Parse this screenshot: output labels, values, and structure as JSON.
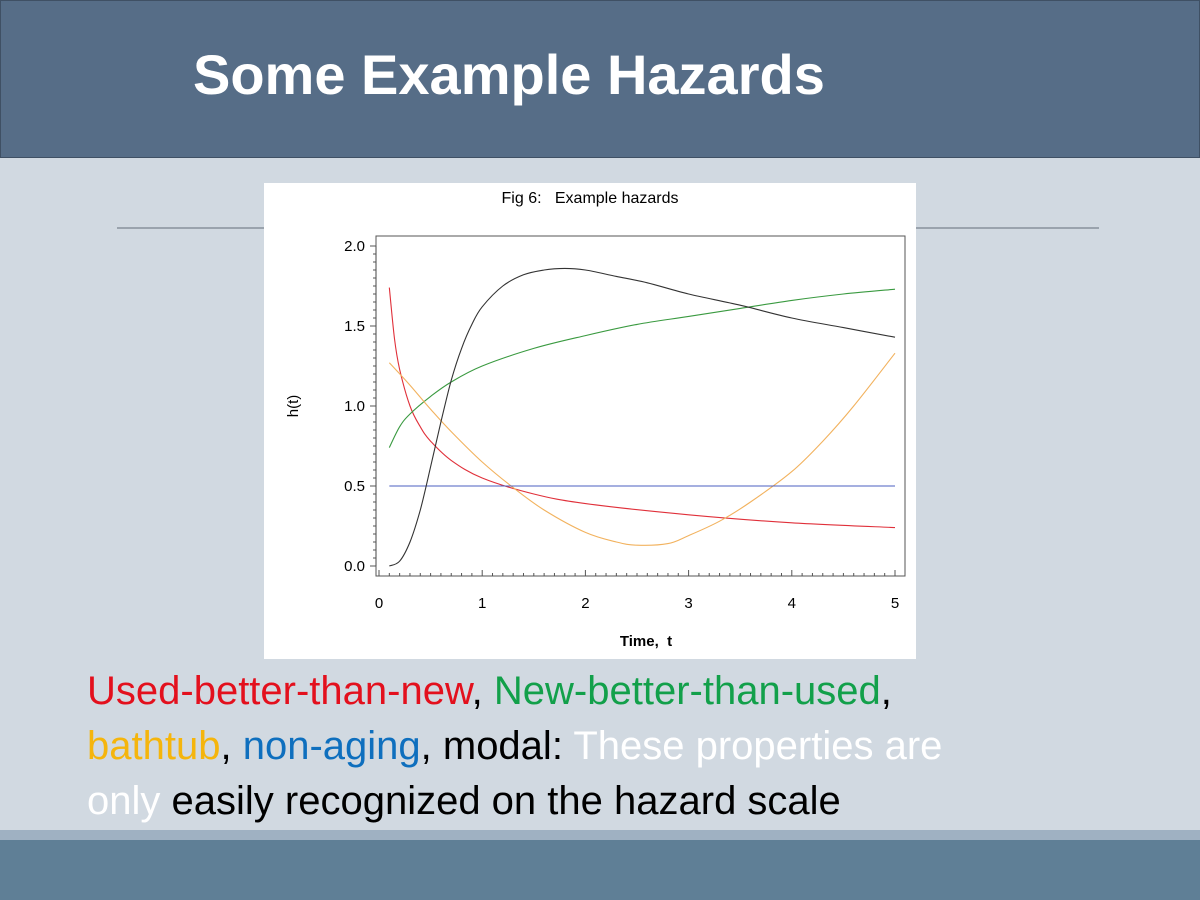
{
  "slide": {
    "title": "Some Example Hazards"
  },
  "caption": {
    "parts": [
      {
        "text": "Used-better-than-new",
        "color": "#e3101d"
      },
      {
        "text": ", ",
        "color": "#000000"
      },
      {
        "text": "New-better-than-used",
        "color": "#12a04a"
      },
      {
        "text": ",",
        "color": "#000000"
      },
      {
        "text": "bathtub",
        "color": "#f5b50c"
      },
      {
        "text": ", ",
        "color": "#000000"
      },
      {
        "text": "non-aging",
        "color": "#0e6fbe"
      },
      {
        "text": ", modal:  ",
        "color": "#000000"
      },
      {
        "text": "These properties are",
        "color": "#ffffff"
      },
      {
        "text": "only",
        "color": "#ffffff"
      },
      {
        "text": " easily recognized on the hazard scale",
        "color": "#000000"
      }
    ]
  },
  "chart_data": {
    "type": "line",
    "title": "Fig 6:   Example hazards",
    "xlabel": "Time,  t",
    "ylabel": "h(t)",
    "xlim": [
      0,
      5
    ],
    "ylim": [
      0,
      2
    ],
    "xticks": [
      "0",
      "1",
      "2",
      "3",
      "4",
      "5"
    ],
    "yticks": [
      "0.0",
      "0.5",
      "1.0",
      "1.5",
      "2.0"
    ],
    "grid": false,
    "legend": false,
    "series": [
      {
        "color": "#e0303a",
        "x": [
          0.1,
          0.15,
          0.2,
          0.3,
          0.4,
          0.5,
          0.7,
          1.0,
          1.5,
          2.0,
          3.0,
          4.0,
          5.0
        ],
        "y": [
          1.74,
          1.42,
          1.23,
          1.0,
          0.87,
          0.78,
          0.66,
          0.55,
          0.45,
          0.39,
          0.32,
          0.27,
          0.24
        ]
      },
      {
        "color": "#3a9a40",
        "x": [
          0.1,
          0.2,
          0.3,
          0.5,
          0.7,
          1.0,
          1.5,
          2.0,
          2.5,
          3.0,
          3.5,
          4.0,
          4.5,
          5.0
        ],
        "y": [
          0.74,
          0.87,
          0.95,
          1.06,
          1.15,
          1.25,
          1.36,
          1.44,
          1.51,
          1.56,
          1.61,
          1.66,
          1.7,
          1.73
        ]
      },
      {
        "color": "#f2b25e",
        "x": [
          0.1,
          0.3,
          0.5,
          0.7,
          1.0,
          1.3,
          1.6,
          2.0,
          2.3,
          2.5,
          2.8,
          3.0,
          3.3,
          3.6,
          4.0,
          4.3,
          4.6,
          5.0
        ],
        "y": [
          1.27,
          1.13,
          0.98,
          0.84,
          0.65,
          0.49,
          0.35,
          0.21,
          0.15,
          0.13,
          0.14,
          0.19,
          0.28,
          0.4,
          0.59,
          0.78,
          1.0,
          1.33
        ]
      },
      {
        "color": "#4b5fc0",
        "x": [
          0.1,
          5.0
        ],
        "y": [
          0.5,
          0.5
        ]
      },
      {
        "color": "#333333",
        "x": [
          0.1,
          0.2,
          0.3,
          0.4,
          0.5,
          0.6,
          0.7,
          0.8,
          0.9,
          1.0,
          1.2,
          1.4,
          1.6,
          1.8,
          2.0,
          2.3,
          2.6,
          3.0,
          3.5,
          4.0,
          4.5,
          5.0
        ],
        "y": [
          0.0,
          0.03,
          0.15,
          0.35,
          0.62,
          0.9,
          1.16,
          1.36,
          1.51,
          1.62,
          1.75,
          1.82,
          1.85,
          1.86,
          1.85,
          1.81,
          1.77,
          1.7,
          1.63,
          1.55,
          1.49,
          1.43
        ]
      }
    ]
  }
}
